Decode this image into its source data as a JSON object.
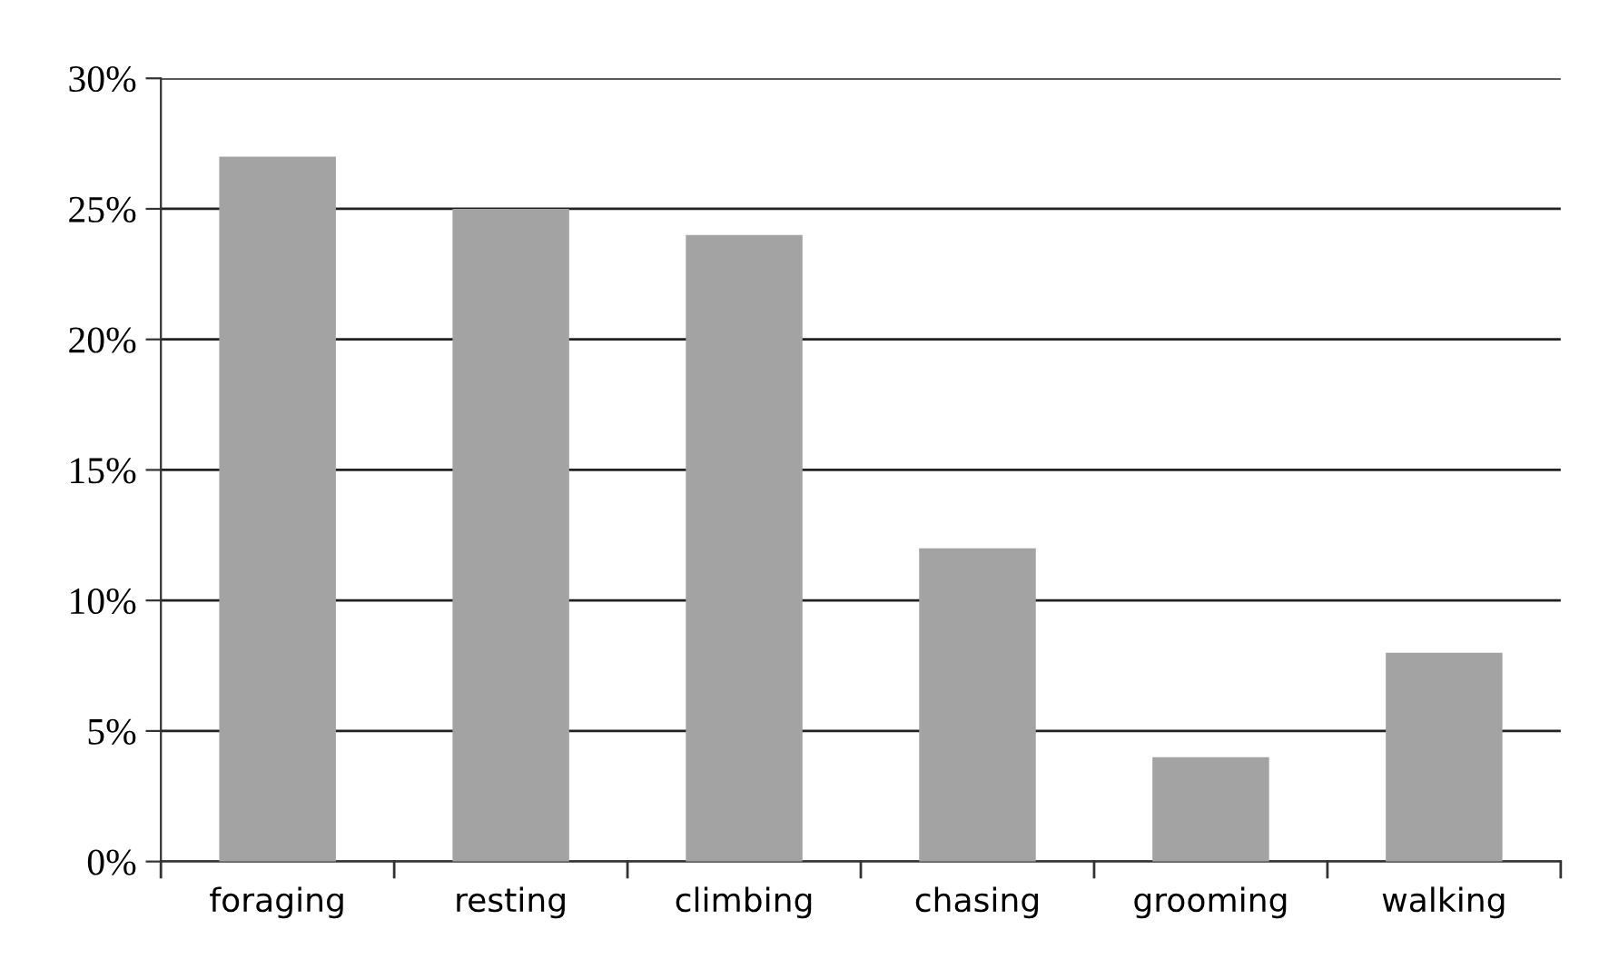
{
  "chart_data": {
    "type": "bar",
    "categories": [
      "foraging",
      "resting",
      "climbing",
      "chasing",
      "grooming",
      "walking"
    ],
    "values": [
      27,
      25,
      24,
      12,
      4,
      8
    ],
    "color": "#a3a3a3",
    "ylim": [
      0,
      30
    ],
    "yticks": [
      {
        "value": 0,
        "label": "0%"
      },
      {
        "value": 5,
        "label": "5%"
      },
      {
        "value": 10,
        "label": "10%"
      },
      {
        "value": 15,
        "label": "15%"
      },
      {
        "value": 20,
        "label": "20%"
      },
      {
        "value": 25,
        "label": "25%"
      },
      {
        "value": 30,
        "label": "30%"
      }
    ],
    "grid": "y"
  }
}
